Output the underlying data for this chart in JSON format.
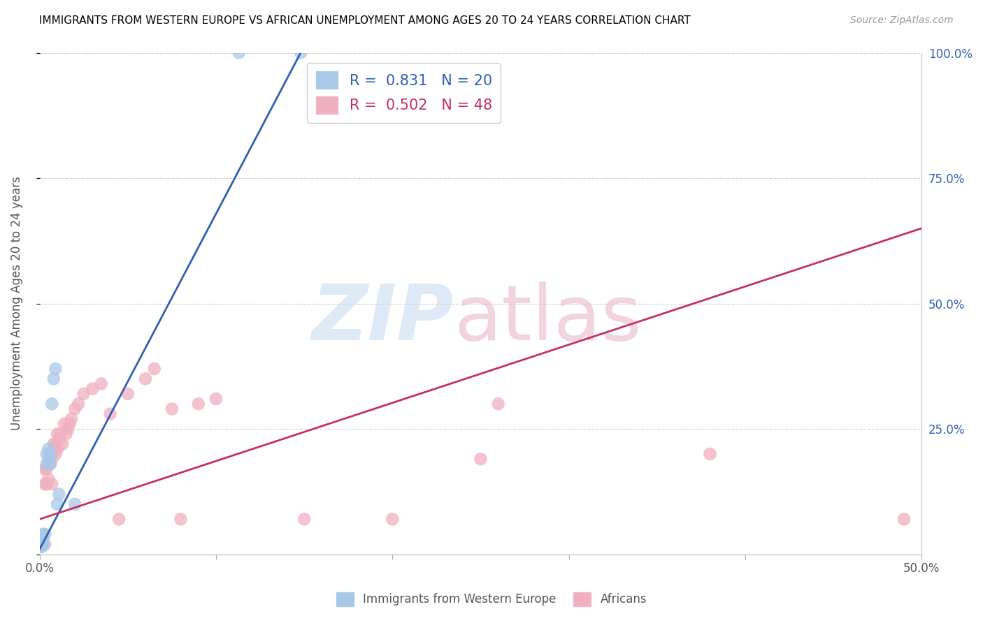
{
  "title": "IMMIGRANTS FROM WESTERN EUROPE VS AFRICAN UNEMPLOYMENT AMONG AGES 20 TO 24 YEARS CORRELATION CHART",
  "source": "Source: ZipAtlas.com",
  "ylabel": "Unemployment Among Ages 20 to 24 years",
  "blue_label": "Immigrants from Western Europe",
  "pink_label": "Africans",
  "blue_R": 0.831,
  "blue_N": 20,
  "pink_R": 0.502,
  "pink_N": 48,
  "blue_color": "#a8c8e8",
  "pink_color": "#f0b0c0",
  "blue_line_color": "#3060b0",
  "pink_line_color": "#c83060",
  "blue_line_x0": 0.0,
  "blue_line_y0": 0.01,
  "blue_line_x1": 0.148,
  "blue_line_y1": 1.0,
  "pink_line_x0": 0.0,
  "pink_line_y0": 0.07,
  "pink_line_x1": 0.5,
  "pink_line_y1": 0.65,
  "blue_points": [
    [
      0.001,
      0.015
    ],
    [
      0.001,
      0.02
    ],
    [
      0.002,
      0.03
    ],
    [
      0.002,
      0.04
    ],
    [
      0.003,
      0.02
    ],
    [
      0.003,
      0.04
    ],
    [
      0.004,
      0.18
    ],
    [
      0.004,
      0.2
    ],
    [
      0.005,
      0.21
    ],
    [
      0.005,
      0.19
    ],
    [
      0.006,
      0.18
    ],
    [
      0.006,
      0.2
    ],
    [
      0.007,
      0.3
    ],
    [
      0.008,
      0.35
    ],
    [
      0.009,
      0.37
    ],
    [
      0.01,
      0.1
    ],
    [
      0.011,
      0.12
    ],
    [
      0.02,
      0.1
    ],
    [
      0.113,
      1.0
    ],
    [
      0.148,
      1.0
    ]
  ],
  "pink_points": [
    [
      0.001,
      0.015
    ],
    [
      0.001,
      0.02
    ],
    [
      0.002,
      0.02
    ],
    [
      0.002,
      0.04
    ],
    [
      0.003,
      0.14
    ],
    [
      0.003,
      0.17
    ],
    [
      0.004,
      0.14
    ],
    [
      0.004,
      0.17
    ],
    [
      0.005,
      0.15
    ],
    [
      0.005,
      0.18
    ],
    [
      0.006,
      0.18
    ],
    [
      0.006,
      0.2
    ],
    [
      0.007,
      0.19
    ],
    [
      0.007,
      0.14
    ],
    [
      0.008,
      0.21
    ],
    [
      0.008,
      0.22
    ],
    [
      0.009,
      0.2
    ],
    [
      0.009,
      0.22
    ],
    [
      0.01,
      0.21
    ],
    [
      0.01,
      0.24
    ],
    [
      0.011,
      0.23
    ],
    [
      0.012,
      0.24
    ],
    [
      0.013,
      0.22
    ],
    [
      0.014,
      0.26
    ],
    [
      0.015,
      0.24
    ],
    [
      0.016,
      0.25
    ],
    [
      0.017,
      0.26
    ],
    [
      0.018,
      0.27
    ],
    [
      0.02,
      0.29
    ],
    [
      0.022,
      0.3
    ],
    [
      0.025,
      0.32
    ],
    [
      0.03,
      0.33
    ],
    [
      0.035,
      0.34
    ],
    [
      0.04,
      0.28
    ],
    [
      0.045,
      0.07
    ],
    [
      0.05,
      0.32
    ],
    [
      0.06,
      0.35
    ],
    [
      0.065,
      0.37
    ],
    [
      0.075,
      0.29
    ],
    [
      0.08,
      0.07
    ],
    [
      0.09,
      0.3
    ],
    [
      0.1,
      0.31
    ],
    [
      0.15,
      0.07
    ],
    [
      0.2,
      0.07
    ],
    [
      0.25,
      0.19
    ],
    [
      0.26,
      0.3
    ],
    [
      0.38,
      0.2
    ],
    [
      0.49,
      0.07
    ]
  ],
  "xlim": [
    0.0,
    0.5
  ],
  "ylim": [
    0.0,
    1.0
  ],
  "xticks": [
    0.0,
    0.1,
    0.2,
    0.3,
    0.4,
    0.5
  ],
  "yticks_right": [
    0.0,
    0.25,
    0.5,
    0.75,
    1.0
  ],
  "xticklabels": [
    "0.0%",
    "",
    "",
    "",
    "",
    "50.0%"
  ],
  "yticklabels_right": [
    "",
    "25.0%",
    "50.0%",
    "75.0%",
    "100.0%"
  ]
}
